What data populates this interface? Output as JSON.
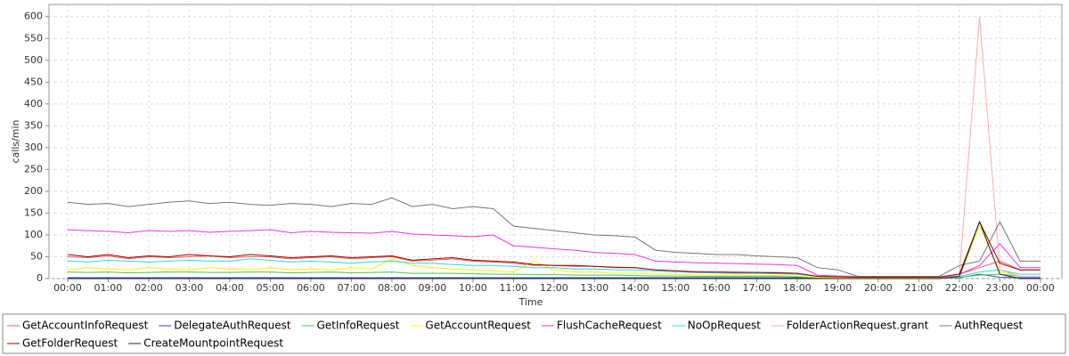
{
  "chart_data": {
    "type": "line",
    "xlabel": "Time",
    "ylabel": "calls/min",
    "x": [
      0,
      0.5,
      1,
      1.5,
      2,
      2.5,
      3,
      3.5,
      4,
      4.5,
      5,
      5.5,
      6,
      6.5,
      7,
      7.5,
      8,
      8.5,
      9,
      9.5,
      10,
      10.5,
      11,
      11.5,
      12,
      12.5,
      13,
      13.5,
      14,
      14.5,
      15,
      15.5,
      16,
      16.5,
      17,
      17.5,
      18,
      18.5,
      19,
      19.5,
      20,
      20.5,
      21,
      21.5,
      22,
      22.5,
      23,
      23.5,
      24
    ],
    "xlim": [
      -0.46,
      24.53
    ],
    "xticks": [
      {
        "value": 0,
        "label": "00:00"
      },
      {
        "value": 1,
        "label": "01:00"
      },
      {
        "value": 2,
        "label": "02:00"
      },
      {
        "value": 3,
        "label": "03:00"
      },
      {
        "value": 4,
        "label": "04:00"
      },
      {
        "value": 5,
        "label": "05:00"
      },
      {
        "value": 6,
        "label": "06:00"
      },
      {
        "value": 7,
        "label": "07:00"
      },
      {
        "value": 8,
        "label": "08:00"
      },
      {
        "value": 9,
        "label": "09:00"
      },
      {
        "value": 10,
        "label": "10:00"
      },
      {
        "value": 11,
        "label": "11:00"
      },
      {
        "value": 12,
        "label": "12:00"
      },
      {
        "value": 13,
        "label": "13:00"
      },
      {
        "value": 14,
        "label": "14:00"
      },
      {
        "value": 15,
        "label": "15:00"
      },
      {
        "value": 16,
        "label": "16:00"
      },
      {
        "value": 17,
        "label": "17:00"
      },
      {
        "value": 18,
        "label": "18:00"
      },
      {
        "value": 19,
        "label": "19:00"
      },
      {
        "value": 20,
        "label": "20:00"
      },
      {
        "value": 21,
        "label": "21:00"
      },
      {
        "value": 22,
        "label": "22:00"
      },
      {
        "value": 23,
        "label": "23:00"
      },
      {
        "value": 24,
        "label": "00:00"
      }
    ],
    "ylim": [
      0,
      628
    ],
    "yticks": [
      0,
      50,
      100,
      150,
      200,
      250,
      300,
      350,
      400,
      450,
      500,
      550,
      600
    ],
    "grid": true,
    "legend": "bottom",
    "series": [
      {
        "name": "GetAccountInfoRequest",
        "color": "#ff5555",
        "values": [
          50,
          48,
          52,
          45,
          50,
          48,
          50,
          52,
          48,
          50,
          50,
          45,
          48,
          50,
          45,
          48,
          50,
          40,
          42,
          45,
          40,
          38,
          35,
          30,
          30,
          28,
          28,
          25,
          25,
          20,
          18,
          16,
          15,
          15,
          14,
          14,
          12,
          5,
          4,
          4,
          3,
          3,
          3,
          3,
          10,
          25,
          40,
          20,
          20
        ]
      },
      {
        "name": "DelegateAuthRequest",
        "color": "#3344cc",
        "values": [
          2,
          2,
          2,
          2,
          2,
          2,
          2,
          2,
          2,
          2,
          2,
          2,
          2,
          2,
          2,
          2,
          2,
          2,
          2,
          2,
          2,
          2,
          2,
          2,
          2,
          2,
          2,
          2,
          2,
          2,
          2,
          2,
          2,
          2,
          2,
          2,
          2,
          1,
          1,
          1,
          1,
          1,
          1,
          1,
          2,
          10,
          3,
          2,
          2
        ]
      },
      {
        "name": "GetInfoRequest",
        "color": "#44cc44",
        "values": [
          15,
          14,
          15,
          13,
          14,
          15,
          15,
          14,
          14,
          15,
          15,
          13,
          14,
          15,
          13,
          14,
          15,
          12,
          12,
          12,
          11,
          10,
          10,
          9,
          9,
          8,
          8,
          8,
          7,
          6,
          6,
          5,
          5,
          5,
          5,
          5,
          4,
          2,
          2,
          2,
          1,
          1,
          1,
          1,
          3,
          8,
          10,
          5,
          5
        ]
      },
      {
        "name": "GetAccountRequest",
        "color": "#ffee00",
        "values": [
          20,
          25,
          22,
          20,
          25,
          22,
          20,
          25,
          22,
          20,
          25,
          20,
          22,
          20,
          25,
          22,
          45,
          30,
          25,
          22,
          20,
          18,
          15,
          40,
          20,
          15,
          15,
          12,
          12,
          10,
          10,
          8,
          8,
          8,
          7,
          7,
          6,
          3,
          2,
          2,
          2,
          2,
          2,
          2,
          5,
          120,
          15,
          5,
          5
        ]
      },
      {
        "name": "FlushCacheRequest",
        "color": "#ee33ee",
        "values": [
          112,
          110,
          108,
          105,
          110,
          108,
          110,
          106,
          108,
          110,
          112,
          105,
          108,
          106,
          105,
          104,
          108,
          102,
          100,
          98,
          96,
          100,
          75,
          72,
          68,
          65,
          60,
          58,
          55,
          40,
          38,
          36,
          35,
          34,
          33,
          32,
          30,
          8,
          6,
          5,
          5,
          4,
          4,
          4,
          10,
          30,
          80,
          25,
          25
        ]
      },
      {
        "name": "NoOpRequest",
        "color": "#22dddd",
        "values": [
          40,
          38,
          42,
          40,
          38,
          40,
          42,
          40,
          40,
          45,
          42,
          38,
          40,
          38,
          35,
          38,
          40,
          35,
          35,
          32,
          30,
          30,
          28,
          25,
          25,
          22,
          22,
          20,
          20,
          18,
          15,
          14,
          13,
          12,
          12,
          11,
          10,
          5,
          4,
          4,
          3,
          3,
          3,
          3,
          5,
          15,
          20,
          10,
          10
        ]
      },
      {
        "name": "FolderActionRequest.grant",
        "color": "#ffaaaa",
        "values": [
          0,
          0,
          0,
          0,
          0,
          0,
          0,
          0,
          0,
          0,
          0,
          0,
          0,
          0,
          0,
          0,
          0,
          0,
          0,
          0,
          0,
          0,
          0,
          0,
          0,
          0,
          0,
          0,
          0,
          0,
          0,
          0,
          0,
          0,
          0,
          0,
          0,
          0,
          0,
          0,
          0,
          0,
          0,
          0,
          10,
          600,
          20,
          5,
          5
        ]
      },
      {
        "name": "AuthRequest",
        "color": "#777777",
        "values": [
          175,
          170,
          172,
          165,
          170,
          175,
          178,
          172,
          175,
          170,
          168,
          172,
          170,
          165,
          172,
          170,
          185,
          165,
          170,
          160,
          165,
          160,
          120,
          115,
          110,
          105,
          100,
          98,
          95,
          65,
          60,
          58,
          55,
          55,
          52,
          50,
          48,
          25,
          20,
          5,
          5,
          5,
          5,
          5,
          30,
          40,
          130,
          40,
          40
        ]
      },
      {
        "name": "GetFolderRequest",
        "color": "#990000",
        "values": [
          55,
          50,
          55,
          48,
          52,
          50,
          55,
          52,
          50,
          55,
          52,
          48,
          50,
          52,
          48,
          50,
          52,
          42,
          45,
          48,
          42,
          40,
          38,
          32,
          30,
          30,
          28,
          26,
          25,
          20,
          18,
          15,
          15,
          14,
          14,
          13,
          12,
          5,
          4,
          3,
          3,
          3,
          3,
          3,
          10,
          130,
          35,
          20,
          20
        ]
      },
      {
        "name": "CreateMountpointRequest",
        "color": "#222222",
        "values": [
          0,
          0,
          0,
          0,
          0,
          0,
          0,
          0,
          0,
          0,
          0,
          0,
          0,
          0,
          0,
          0,
          0,
          0,
          0,
          0,
          0,
          0,
          0,
          0,
          0,
          0,
          0,
          0,
          0,
          0,
          0,
          0,
          0,
          0,
          0,
          0,
          0,
          0,
          0,
          0,
          0,
          0,
          0,
          0,
          5,
          130,
          10,
          0,
          0
        ]
      }
    ]
  }
}
